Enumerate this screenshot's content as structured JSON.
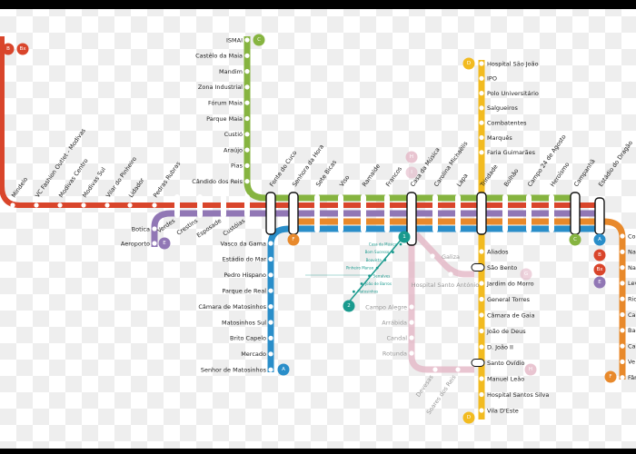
{
  "colors": {
    "A": "#2a8ec9",
    "B": "#d9452b",
    "C": "#86b440",
    "D": "#f2bb20",
    "E": "#9177b5",
    "F": "#e8892b",
    "G": "#e3b6c6",
    "tram": "#1a9a8e"
  },
  "trunk": [
    "Verdes",
    "Crestins",
    "Esposade",
    "Custóias",
    "Fonte do Cuco",
    "Senhora da Hora",
    "Sete Bicas",
    "Viso",
    "Ramalde",
    "Francos",
    "Casa da Música",
    "Carolina Michaëlis",
    "Lapa",
    "Trindade",
    "Bolhão",
    "Campo 24 de Agosto",
    "Heroísmo",
    "Campanhã",
    "Estádio do Dragão"
  ],
  "line_b": [
    "Mindelo",
    "VC Fashion Outlet - Modivas",
    "Modivas Centro",
    "Modivas Sul",
    "Vilar do Pinheiro",
    "Lidador",
    "Pedras Rubras"
  ],
  "line_c": [
    "ISMAI",
    "Castêlo da Maia",
    "Mandim",
    "Zona Industrial",
    "Fórum Maia",
    "Parque Maia",
    "Custió",
    "Araújo",
    "Pias",
    "Cândido dos Reis"
  ],
  "line_e": [
    "Botica",
    "Aeroporto"
  ],
  "line_a": [
    "Vasco da Gama",
    "Estádio do Mar",
    "Pedro Hispano",
    "Parque de Real",
    "Câmara de Matosinhos",
    "Matosinhos Sul",
    "Brito Capelo",
    "Mercado",
    "Senhor de Matosinhos"
  ],
  "line_d_north": [
    "Hospital São João",
    "IPO",
    "Polo Universitário",
    "Salgueiros",
    "Combatentes",
    "Marquês",
    "Faria Guimarães"
  ],
  "line_d_south": [
    "Aliados",
    "São Bento",
    "Jardim do Morro",
    "General Torres",
    "Câmara de Gaia",
    "João de Deus",
    "D. João II",
    "Santo Ovídio",
    "Manuel Leão",
    "Hospital Santos Silva",
    "Vila D'Este"
  ],
  "line_f": [
    "Co",
    "Na",
    "Na",
    "Lev",
    "Rio",
    "Ca",
    "Bag",
    "Ca",
    "Ve",
    "Fân"
  ],
  "line_g_branch": [
    "Galiza",
    "Hospital Santo António"
  ],
  "line_g_south": [
    "Campo Alegre",
    "Arrábida",
    "Candal",
    "Rotunda",
    "Devesas",
    "Soares dos Reis"
  ],
  "tram": [
    "Casa da Música",
    "Bom Sucesso",
    "Boavista",
    "Pinheiro Manso",
    "Serralves",
    "João de Barros",
    "Matosinhos"
  ],
  "badges": {
    "A": "A",
    "B": "B",
    "Bx": "Bx",
    "C": "C",
    "D": "D",
    "E": "E",
    "F": "F",
    "G": "G",
    "H": "H",
    "I": "I",
    "tram1": "1",
    "tram2": "2"
  }
}
